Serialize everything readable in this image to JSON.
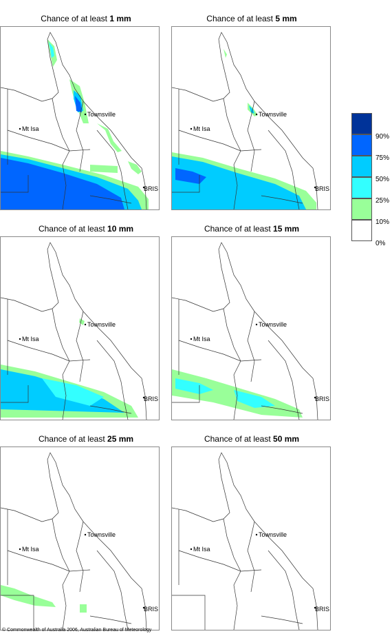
{
  "panels": [
    {
      "prefix": "Chance of at least ",
      "amount": "1 mm"
    },
    {
      "prefix": "Chance of at least ",
      "amount": "5 mm"
    },
    {
      "prefix": "Chance of at least ",
      "amount": "10 mm"
    },
    {
      "prefix": "Chance of at least ",
      "amount": "15 mm"
    },
    {
      "prefix": "Chance of at least ",
      "amount": "25 mm"
    },
    {
      "prefix": "Chance of at least ",
      "amount": "50 mm"
    }
  ],
  "places": {
    "townsville": "Townsville",
    "mt_isa": "Mt Isa",
    "brisbane": "BRIS"
  },
  "legend": {
    "labels": [
      "90%",
      "75%",
      "50%",
      "25%",
      "10%",
      "0%"
    ],
    "colors": [
      "#003399",
      "#0066ff",
      "#00ccff",
      "#33ffff",
      "#99ff99",
      "#ffffff"
    ]
  },
  "copyright": "© Commonwealth of Australia 2006, Australian Bureau of Meteorology"
}
